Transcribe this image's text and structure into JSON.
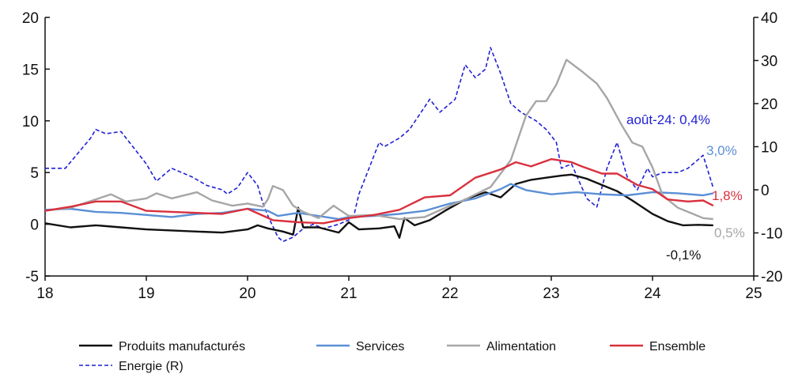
{
  "chart_data": {
    "type": "line",
    "xlim": [
      18,
      25
    ],
    "x_ticks": [
      "18",
      "19",
      "20",
      "21",
      "22",
      "23",
      "24",
      "25"
    ],
    "y_left": {
      "lim": [
        -5,
        20
      ],
      "ticks": [
        "-5",
        "0",
        "5",
        "10",
        "15",
        "20"
      ]
    },
    "y_right": {
      "lim": [
        -20,
        40
      ],
      "ticks": [
        "-20",
        "-10",
        "0",
        "10",
        "20",
        "30",
        "40"
      ]
    },
    "series": [
      {
        "name": "Produits manufacturés",
        "color": "#111111",
        "axis": "left",
        "dash": false,
        "end_label": "-0,1%",
        "points": [
          [
            18.0,
            0.1
          ],
          [
            18.25,
            -0.3
          ],
          [
            18.5,
            -0.1
          ],
          [
            18.75,
            -0.3
          ],
          [
            19.0,
            -0.5
          ],
          [
            19.25,
            -0.6
          ],
          [
            19.5,
            -0.7
          ],
          [
            19.75,
            -0.8
          ],
          [
            20.0,
            -0.5
          ],
          [
            20.1,
            -0.1
          ],
          [
            20.2,
            -0.4
          ],
          [
            20.35,
            -0.7
          ],
          [
            20.45,
            -1.0
          ],
          [
            20.5,
            1.6
          ],
          [
            20.55,
            -0.3
          ],
          [
            20.7,
            -0.3
          ],
          [
            20.9,
            -0.8
          ],
          [
            21.0,
            0.2
          ],
          [
            21.1,
            -0.5
          ],
          [
            21.3,
            -0.4
          ],
          [
            21.45,
            -0.2
          ],
          [
            21.5,
            -1.3
          ],
          [
            21.55,
            0.6
          ],
          [
            21.65,
            -0.1
          ],
          [
            21.8,
            0.4
          ],
          [
            21.95,
            1.3
          ],
          [
            22.15,
            2.4
          ],
          [
            22.35,
            3.1
          ],
          [
            22.5,
            2.6
          ],
          [
            22.65,
            3.9
          ],
          [
            22.8,
            4.3
          ],
          [
            22.95,
            4.5
          ],
          [
            23.1,
            4.7
          ],
          [
            23.2,
            4.8
          ],
          [
            23.35,
            4.4
          ],
          [
            23.5,
            3.8
          ],
          [
            23.65,
            3.2
          ],
          [
            23.8,
            2.3
          ],
          [
            24.0,
            1.0
          ],
          [
            24.15,
            0.3
          ],
          [
            24.3,
            -0.1
          ],
          [
            24.45,
            -0.05
          ],
          [
            24.6,
            -0.1
          ]
        ]
      },
      {
        "name": "Services",
        "color": "#5b8fd6",
        "axis": "left",
        "dash": false,
        "end_label": "3,0%",
        "points": [
          [
            18.0,
            1.4
          ],
          [
            18.25,
            1.5
          ],
          [
            18.5,
            1.2
          ],
          [
            18.75,
            1.1
          ],
          [
            19.0,
            0.9
          ],
          [
            19.25,
            0.7
          ],
          [
            19.5,
            1.0
          ],
          [
            19.75,
            1.1
          ],
          [
            20.0,
            1.5
          ],
          [
            20.2,
            1.3
          ],
          [
            20.3,
            0.8
          ],
          [
            20.5,
            1.1
          ],
          [
            20.7,
            0.8
          ],
          [
            20.9,
            0.5
          ],
          [
            21.0,
            0.7
          ],
          [
            21.25,
            0.8
          ],
          [
            21.5,
            1.0
          ],
          [
            21.75,
            1.3
          ],
          [
            22.0,
            2.0
          ],
          [
            22.25,
            2.5
          ],
          [
            22.5,
            3.4
          ],
          [
            22.6,
            3.9
          ],
          [
            22.75,
            3.3
          ],
          [
            23.0,
            2.9
          ],
          [
            23.25,
            3.1
          ],
          [
            23.5,
            2.9
          ],
          [
            23.75,
            2.8
          ],
          [
            24.0,
            3.1
          ],
          [
            24.25,
            3.0
          ],
          [
            24.5,
            2.8
          ],
          [
            24.6,
            3.0
          ]
        ]
      },
      {
        "name": "Alimentation",
        "color": "#a6a6a6",
        "axis": "left",
        "dash": false,
        "end_label": "0,5%",
        "points": [
          [
            18.0,
            1.3
          ],
          [
            18.25,
            1.6
          ],
          [
            18.5,
            2.4
          ],
          [
            18.65,
            2.9
          ],
          [
            18.8,
            2.2
          ],
          [
            19.0,
            2.5
          ],
          [
            19.1,
            3.0
          ],
          [
            19.25,
            2.5
          ],
          [
            19.5,
            3.1
          ],
          [
            19.65,
            2.3
          ],
          [
            19.85,
            1.8
          ],
          [
            20.0,
            2.0
          ],
          [
            20.15,
            1.7
          ],
          [
            20.2,
            2.4
          ],
          [
            20.25,
            3.7
          ],
          [
            20.35,
            3.3
          ],
          [
            20.45,
            1.8
          ],
          [
            20.55,
            1.2
          ],
          [
            20.7,
            0.6
          ],
          [
            20.85,
            1.8
          ],
          [
            21.0,
            0.8
          ],
          [
            21.25,
            0.9
          ],
          [
            21.5,
            0.5
          ],
          [
            21.75,
            0.7
          ],
          [
            22.0,
            1.8
          ],
          [
            22.15,
            2.4
          ],
          [
            22.4,
            3.6
          ],
          [
            22.6,
            6.2
          ],
          [
            22.75,
            10.5
          ],
          [
            22.85,
            11.9
          ],
          [
            22.95,
            11.9
          ],
          [
            23.05,
            13.5
          ],
          [
            23.15,
            15.9
          ],
          [
            23.3,
            14.8
          ],
          [
            23.45,
            13.6
          ],
          [
            23.55,
            12.2
          ],
          [
            23.7,
            9.5
          ],
          [
            23.8,
            7.9
          ],
          [
            23.9,
            7.5
          ],
          [
            24.0,
            5.5
          ],
          [
            24.1,
            2.8
          ],
          [
            24.25,
            1.6
          ],
          [
            24.4,
            1.0
          ],
          [
            24.5,
            0.6
          ],
          [
            24.6,
            0.5
          ]
        ]
      },
      {
        "name": "Ensemble",
        "color": "#d9303d",
        "axis": "left",
        "dash": false,
        "end_label": "1,8%",
        "points": [
          [
            18.0,
            1.3
          ],
          [
            18.25,
            1.7
          ],
          [
            18.5,
            2.2
          ],
          [
            18.75,
            2.2
          ],
          [
            19.0,
            1.3
          ],
          [
            19.25,
            1.2
          ],
          [
            19.5,
            1.1
          ],
          [
            19.75,
            1.0
          ],
          [
            20.0,
            1.5
          ],
          [
            20.25,
            0.4
          ],
          [
            20.5,
            0.2
          ],
          [
            20.75,
            0.1
          ],
          [
            21.0,
            0.6
          ],
          [
            21.25,
            0.9
          ],
          [
            21.5,
            1.4
          ],
          [
            21.75,
            2.6
          ],
          [
            22.0,
            2.8
          ],
          [
            22.25,
            4.5
          ],
          [
            22.5,
            5.3
          ],
          [
            22.65,
            6.0
          ],
          [
            22.8,
            5.6
          ],
          [
            23.0,
            6.3
          ],
          [
            23.2,
            6.0
          ],
          [
            23.3,
            5.6
          ],
          [
            23.5,
            4.9
          ],
          [
            23.65,
            4.9
          ],
          [
            23.85,
            3.8
          ],
          [
            24.0,
            3.4
          ],
          [
            24.15,
            2.4
          ],
          [
            24.35,
            2.2
          ],
          [
            24.5,
            2.3
          ],
          [
            24.6,
            1.8
          ]
        ]
      },
      {
        "name": "Energie (R)",
        "color": "#1f1fd6",
        "axis": "right",
        "dash": true,
        "end_label": "août-24: 0,4%",
        "points": [
          [
            18.0,
            5
          ],
          [
            18.2,
            5
          ],
          [
            18.45,
            12
          ],
          [
            18.5,
            14
          ],
          [
            18.6,
            13
          ],
          [
            18.75,
            13.5
          ],
          [
            18.9,
            9
          ],
          [
            19.0,
            6
          ],
          [
            19.1,
            2
          ],
          [
            19.2,
            4
          ],
          [
            19.25,
            5
          ],
          [
            19.45,
            3
          ],
          [
            19.6,
            1
          ],
          [
            19.75,
            0
          ],
          [
            19.8,
            -1
          ],
          [
            19.9,
            0.5
          ],
          [
            20.0,
            4
          ],
          [
            20.1,
            1
          ],
          [
            20.15,
            -3
          ],
          [
            20.2,
            -6
          ],
          [
            20.3,
            -11
          ],
          [
            20.35,
            -12
          ],
          [
            20.45,
            -11
          ],
          [
            20.55,
            -9
          ],
          [
            20.65,
            -8
          ],
          [
            20.75,
            -9
          ],
          [
            20.9,
            -8
          ],
          [
            21.0,
            -7
          ],
          [
            21.05,
            -6
          ],
          [
            21.1,
            -1
          ],
          [
            21.2,
            5
          ],
          [
            21.3,
            11
          ],
          [
            21.35,
            10
          ],
          [
            21.5,
            12
          ],
          [
            21.6,
            14
          ],
          [
            21.8,
            21
          ],
          [
            21.9,
            18
          ],
          [
            22.05,
            21
          ],
          [
            22.15,
            29
          ],
          [
            22.25,
            26
          ],
          [
            22.35,
            28
          ],
          [
            22.4,
            33
          ],
          [
            22.5,
            27
          ],
          [
            22.6,
            20
          ],
          [
            22.7,
            18
          ],
          [
            22.85,
            16
          ],
          [
            22.95,
            14
          ],
          [
            23.05,
            11
          ],
          [
            23.1,
            5
          ],
          [
            23.2,
            6
          ],
          [
            23.35,
            -2
          ],
          [
            23.45,
            -4
          ],
          [
            23.55,
            5
          ],
          [
            23.65,
            11
          ],
          [
            23.75,
            3
          ],
          [
            23.85,
            0
          ],
          [
            23.95,
            5
          ],
          [
            24.0,
            3
          ],
          [
            24.1,
            4
          ],
          [
            24.25,
            4
          ],
          [
            24.35,
            5
          ],
          [
            24.5,
            8
          ],
          [
            24.6,
            0.4
          ]
        ]
      }
    ]
  },
  "legend": [
    {
      "name": "Produits manufacturés",
      "color": "#111111",
      "dash": false
    },
    {
      "name": "Services",
      "color": "#5b8fd6",
      "dash": false
    },
    {
      "name": "Alimentation",
      "color": "#a6a6a6",
      "dash": false
    },
    {
      "name": "Ensemble",
      "color": "#d9303d",
      "dash": false
    },
    {
      "name": "Energie (R)",
      "color": "#1f1fd6",
      "dash": true
    }
  ]
}
